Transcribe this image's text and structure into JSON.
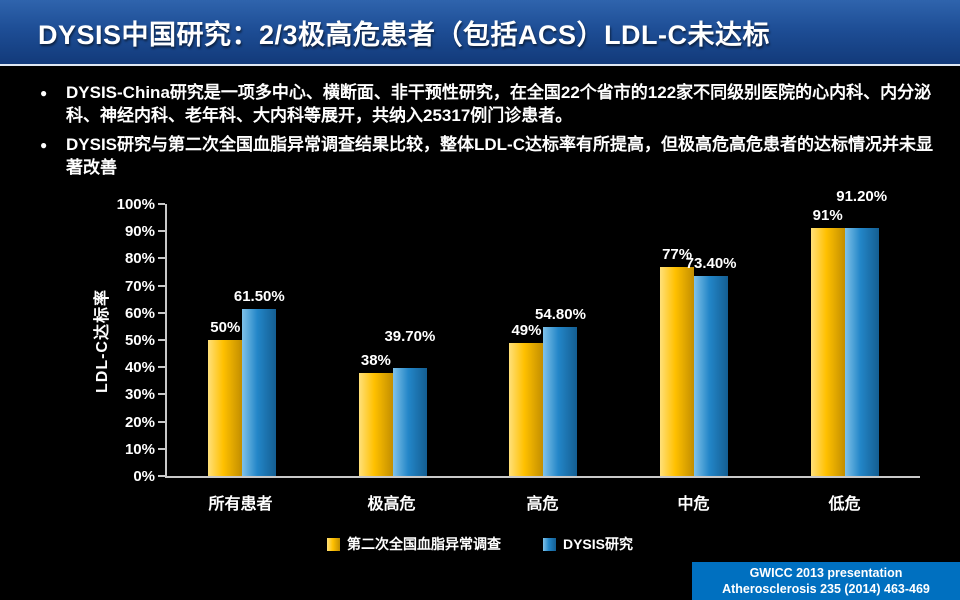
{
  "header": {
    "title": "DYSIS中国研究：2/3极高危患者（包括ACS）LDL-C未达标"
  },
  "bullets": [
    "DYSIS-China研究是一项多中心、横断面、非干预性研究，在全国22个省市的122家不同级别医院的心内科、内分泌科、神经内科、老年科、大内科等展开，共纳入25317例门诊患者。",
    "DYSIS研究与第二次全国血脂异常调查结果比较，整体LDL-C达标率有所提高，但极高危高危患者的达标情况并未显著改善"
  ],
  "chart_data": {
    "type": "bar",
    "title": "",
    "xlabel": "",
    "ylabel": "LDL-C达标率",
    "ylim": [
      0,
      100
    ],
    "ytick_step": 10,
    "ytick_labels": [
      "0%",
      "10%",
      "20%",
      "30%",
      "40%",
      "50%",
      "60%",
      "70%",
      "80%",
      "90%",
      "100%"
    ],
    "grid": false,
    "legend_position": "bottom",
    "categories": [
      "所有患者",
      "极高危",
      "高危",
      "中危",
      "低危"
    ],
    "series": [
      {
        "name": "第二次全国血脂异常调查",
        "color": "#FFC000",
        "values": [
          50,
          38,
          49,
          77,
          91
        ],
        "labels": [
          "50%",
          "38%",
          "49%",
          "77%",
          "91%"
        ]
      },
      {
        "name": "DYSIS研究",
        "color": "#2386C8",
        "values": [
          61.5,
          39.7,
          54.8,
          73.4,
          91.2
        ],
        "labels": [
          "61.50%",
          "39.70%",
          "54.80%",
          "73.40%",
          "91.20%"
        ]
      }
    ]
  },
  "footer": {
    "line1": "GWICC 2013 presentation",
    "line2": "Atherosclerosis 235 (2014) 463-469"
  }
}
